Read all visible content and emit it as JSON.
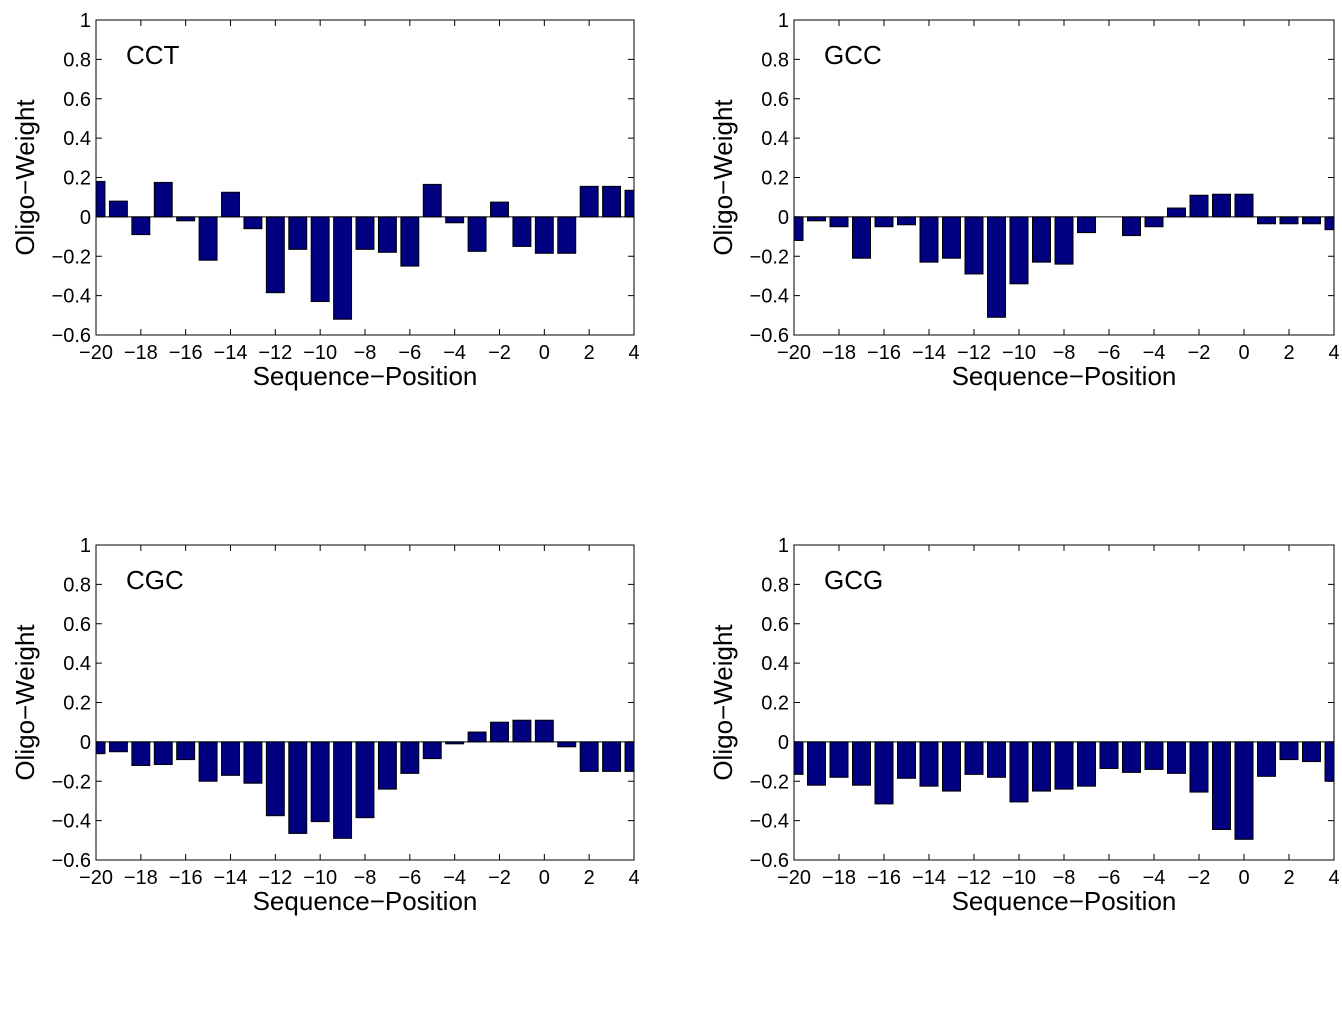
{
  "chart_data": [
    {
      "type": "bar",
      "title": "CCT",
      "xlabel": "Sequence−Position",
      "ylabel": "Oligo−Weight",
      "xlim": [
        -20,
        4
      ],
      "ylim": [
        -0.6,
        1
      ],
      "xticks": [
        "−20",
        "−18",
        "−16",
        "−14",
        "−12",
        "−10",
        "−8",
        "−6",
        "−4",
        "−2",
        "0",
        "2",
        "4"
      ],
      "yticks": [
        "−0.6",
        "−0.4",
        "−0.2",
        "0",
        "0.2",
        "0.4",
        "0.6",
        "0.8",
        "1"
      ],
      "x": [
        -20,
        -19,
        -18,
        -17,
        -16,
        -15,
        -14,
        -13,
        -12,
        -11,
        -10,
        -9,
        -8,
        -7,
        -6,
        -5,
        -4,
        -3,
        -2,
        -1,
        0,
        1,
        2,
        3,
        4
      ],
      "values": [
        0.18,
        0.08,
        -0.09,
        0.175,
        -0.02,
        -0.22,
        0.125,
        -0.06,
        -0.385,
        -0.165,
        -0.43,
        -0.52,
        -0.165,
        -0.18,
        -0.25,
        0.165,
        -0.03,
        -0.175,
        0.075,
        -0.15,
        -0.185,
        -0.185,
        0.155,
        0.155,
        0.135
      ],
      "bar_color": "#000080"
    },
    {
      "type": "bar",
      "title": "GCC",
      "xlabel": "Sequence−Position",
      "ylabel": "Oligo−Weight",
      "xlim": [
        -20,
        4
      ],
      "ylim": [
        -0.6,
        1
      ],
      "xticks": [
        "−20",
        "−18",
        "−16",
        "−14",
        "−12",
        "−10",
        "−8",
        "−6",
        "−4",
        "−2",
        "0",
        "2",
        "4"
      ],
      "yticks": [
        "−0.6",
        "−0.4",
        "−0.2",
        "0",
        "0.2",
        "0.4",
        "0.6",
        "0.8",
        "1"
      ],
      "x": [
        -20,
        -19,
        -18,
        -17,
        -16,
        -15,
        -14,
        -13,
        -12,
        -11,
        -10,
        -9,
        -8,
        -7,
        -6,
        -5,
        -4,
        -3,
        -2,
        -1,
        0,
        1,
        2,
        3,
        4
      ],
      "values": [
        -0.12,
        -0.02,
        -0.05,
        -0.21,
        -0.05,
        -0.04,
        -0.23,
        -0.21,
        -0.29,
        -0.51,
        -0.34,
        -0.23,
        -0.24,
        -0.08,
        0.0,
        -0.095,
        -0.05,
        0.045,
        0.11,
        0.115,
        0.115,
        -0.035,
        -0.035,
        -0.035,
        -0.065
      ],
      "bar_color": "#000080"
    },
    {
      "type": "bar",
      "title": "CGC",
      "xlabel": "Sequence−Position",
      "ylabel": "Oligo−Weight",
      "xlim": [
        -20,
        4
      ],
      "ylim": [
        -0.6,
        1
      ],
      "xticks": [
        "−20",
        "−18",
        "−16",
        "−14",
        "−12",
        "−10",
        "−8",
        "−6",
        "−4",
        "−2",
        "0",
        "2",
        "4"
      ],
      "yticks": [
        "−0.6",
        "−0.4",
        "−0.2",
        "0",
        "0.2",
        "0.4",
        "0.6",
        "0.8",
        "1"
      ],
      "x": [
        -20,
        -19,
        -18,
        -17,
        -16,
        -15,
        -14,
        -13,
        -12,
        -11,
        -10,
        -9,
        -8,
        -7,
        -6,
        -5,
        -4,
        -3,
        -2,
        -1,
        0,
        1,
        2,
        3,
        4
      ],
      "values": [
        -0.06,
        -0.05,
        -0.12,
        -0.115,
        -0.09,
        -0.2,
        -0.17,
        -0.21,
        -0.375,
        -0.465,
        -0.405,
        -0.49,
        -0.385,
        -0.24,
        -0.16,
        -0.085,
        -0.01,
        0.05,
        0.1,
        0.11,
        0.11,
        -0.025,
        -0.15,
        -0.15,
        -0.15
      ],
      "bar_color": "#000080"
    },
    {
      "type": "bar",
      "title": "GCG",
      "xlabel": "Sequence−Position",
      "ylabel": "Oligo−Weight",
      "xlim": [
        -20,
        4
      ],
      "ylim": [
        -0.6,
        1
      ],
      "xticks": [
        "−20",
        "−18",
        "−16",
        "−14",
        "−12",
        "−10",
        "−8",
        "−6",
        "−4",
        "−2",
        "0",
        "2",
        "4"
      ],
      "yticks": [
        "−0.6",
        "−0.4",
        "−0.2",
        "0",
        "0.2",
        "0.4",
        "0.6",
        "0.8",
        "1"
      ],
      "x": [
        -20,
        -19,
        -18,
        -17,
        -16,
        -15,
        -14,
        -13,
        -12,
        -11,
        -10,
        -9,
        -8,
        -7,
        -6,
        -5,
        -4,
        -3,
        -2,
        -1,
        0,
        1,
        2,
        3,
        4
      ],
      "values": [
        -0.165,
        -0.22,
        -0.18,
        -0.22,
        -0.315,
        -0.185,
        -0.225,
        -0.25,
        -0.165,
        -0.18,
        -0.305,
        -0.25,
        -0.24,
        -0.225,
        -0.135,
        -0.155,
        -0.14,
        -0.16,
        -0.255,
        -0.445,
        -0.495,
        -0.175,
        -0.09,
        -0.1,
        -0.2
      ],
      "bar_color": "#000080"
    }
  ]
}
